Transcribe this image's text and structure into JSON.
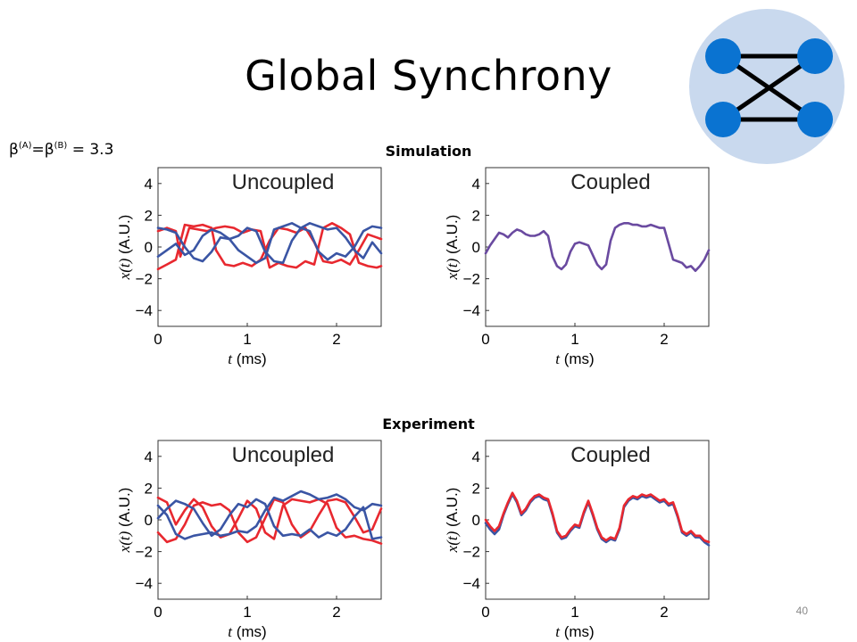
{
  "slide": {
    "title": "Global Synchrony",
    "beta_base": "β",
    "beta_sup_a": "(A)",
    "beta_sup_b": "(B)",
    "beta_eq": "=",
    "beta_value": " = 3.3",
    "simulation_label": "Simulation",
    "experiment_label": "Experiment",
    "page_number": "40"
  },
  "colors": {
    "red": "#e8282f",
    "blue": "#3a55a4",
    "purple": "#6a4aa0",
    "node": "#0a73d1",
    "circle_bg": "#c9d9ee"
  },
  "chart_data": [
    {
      "type": "line",
      "panel": "Uncoupled",
      "section": "Simulation",
      "xlabel_var": "t",
      "xlabel_unit": " (ms)",
      "ylabel_var": "x(t)",
      "ylabel_unit": " (A.U.)",
      "xlim": [
        0,
        2.5
      ],
      "ylim": [
        -5,
        5
      ],
      "xticks": [
        0,
        1,
        2
      ],
      "yticks": [
        4,
        2,
        0,
        -2,
        -4
      ],
      "series": [
        {
          "color": "red",
          "x": [
            0,
            0.1,
            0.2,
            0.25,
            0.35,
            0.45,
            0.55,
            0.65,
            0.75,
            0.85,
            0.95,
            1.05,
            1.15,
            1.25,
            1.35,
            1.45,
            1.55,
            1.65,
            1.75,
            1.85,
            1.95,
            2.05,
            2.15,
            2.25,
            2.35,
            2.45,
            2.5
          ],
          "y": [
            1.0,
            1.2,
            1.0,
            -0.6,
            1.2,
            1.1,
            1.0,
            1.2,
            1.3,
            1.2,
            0.9,
            1.1,
            1.0,
            -1.3,
            -1.0,
            -1.2,
            -1.3,
            -0.9,
            -1.1,
            1.2,
            1.5,
            1.2,
            0.8,
            -1.0,
            -1.2,
            -1.3,
            -1.2
          ]
        },
        {
          "color": "red",
          "x": [
            0,
            0.1,
            0.2,
            0.3,
            0.4,
            0.5,
            0.6,
            0.65,
            0.75,
            0.85,
            0.95,
            1.05,
            1.15,
            1.25,
            1.35,
            1.45,
            1.55,
            1.65,
            1.75,
            1.85,
            1.95,
            2.05,
            2.15,
            2.25,
            2.35,
            2.45,
            2.5
          ],
          "y": [
            -1.4,
            -1.1,
            -0.8,
            1.4,
            1.3,
            1.4,
            1.2,
            -0.2,
            -1.1,
            -1.2,
            -1.0,
            -1.2,
            -0.8,
            0.4,
            1.2,
            1.1,
            0.9,
            1.2,
            0.3,
            -0.9,
            -1.0,
            -0.8,
            -1.1,
            -0.2,
            0.8,
            0.6,
            0.5
          ]
        },
        {
          "color": "blue",
          "x": [
            0,
            0.1,
            0.2,
            0.3,
            0.4,
            0.5,
            0.6,
            0.7,
            0.8,
            0.9,
            1.0,
            1.1,
            1.2,
            1.3,
            1.4,
            1.5,
            1.6,
            1.7,
            1.8,
            1.9,
            2.0,
            2.1,
            2.2,
            2.3,
            2.4,
            2.5
          ],
          "y": [
            1.2,
            1.1,
            0.9,
            0.0,
            -0.7,
            -0.9,
            -0.3,
            0.6,
            0.5,
            0.7,
            1.2,
            1.0,
            -0.3,
            -0.9,
            -1.0,
            0.4,
            1.2,
            1.5,
            1.3,
            1.1,
            1.2,
            0.6,
            -0.2,
            -0.7,
            0.3,
            -0.4
          ]
        },
        {
          "color": "blue",
          "x": [
            0,
            0.1,
            0.2,
            0.3,
            0.4,
            0.5,
            0.6,
            0.7,
            0.8,
            0.9,
            1.0,
            1.1,
            1.2,
            1.3,
            1.4,
            1.5,
            1.6,
            1.7,
            1.8,
            1.9,
            2.0,
            2.1,
            2.2,
            2.3,
            2.4,
            2.5
          ],
          "y": [
            -0.6,
            -0.2,
            0.2,
            -0.5,
            -0.2,
            0.7,
            1.1,
            0.9,
            0.5,
            -0.2,
            -0.6,
            -1.0,
            -0.7,
            1.1,
            1.3,
            1.5,
            1.2,
            1.0,
            -0.3,
            -0.8,
            -0.4,
            -0.6,
            0.0,
            1.0,
            1.3,
            1.2
          ]
        }
      ]
    },
    {
      "type": "line",
      "panel": "Coupled",
      "section": "Simulation",
      "xlabel_var": "t",
      "xlabel_unit": " (ms)",
      "ylabel_var": "x(t)",
      "ylabel_unit": " (A.U.)",
      "xlim": [
        0,
        2.5
      ],
      "ylim": [
        -5,
        5
      ],
      "xticks": [
        0,
        1,
        2
      ],
      "yticks": [
        4,
        2,
        0,
        -2,
        -4
      ],
      "series": [
        {
          "color": "purple",
          "x": [
            0,
            0.05,
            0.1,
            0.15,
            0.2,
            0.25,
            0.3,
            0.35,
            0.4,
            0.45,
            0.5,
            0.55,
            0.6,
            0.65,
            0.7,
            0.75,
            0.8,
            0.85,
            0.9,
            0.95,
            1.0,
            1.05,
            1.1,
            1.15,
            1.2,
            1.25,
            1.3,
            1.35,
            1.4,
            1.45,
            1.5,
            1.55,
            1.6,
            1.65,
            1.7,
            1.75,
            1.8,
            1.85,
            1.9,
            1.95,
            2.0,
            2.05,
            2.1,
            2.15,
            2.2,
            2.25,
            2.3,
            2.35,
            2.4,
            2.45,
            2.5
          ],
          "y": [
            -0.4,
            0.1,
            0.5,
            0.9,
            0.8,
            0.6,
            0.9,
            1.1,
            1.0,
            0.8,
            0.7,
            0.7,
            0.8,
            1.0,
            0.7,
            -0.6,
            -1.2,
            -1.4,
            -1.1,
            -0.3,
            0.2,
            0.3,
            0.2,
            0.1,
            -0.5,
            -1.1,
            -1.4,
            -1.1,
            0.4,
            1.2,
            1.4,
            1.5,
            1.5,
            1.4,
            1.4,
            1.3,
            1.3,
            1.4,
            1.3,
            1.2,
            1.2,
            0.2,
            -0.8,
            -0.9,
            -1.0,
            -1.3,
            -1.2,
            -1.5,
            -1.2,
            -0.8,
            -0.2
          ]
        }
      ]
    },
    {
      "type": "line",
      "panel": "Uncoupled",
      "section": "Experiment",
      "xlabel_var": "t",
      "xlabel_unit": " (ms)",
      "ylabel_var": "x(t)",
      "ylabel_unit": " (A.U.)",
      "xlim": [
        0,
        2.5
      ],
      "ylim": [
        -5,
        5
      ],
      "xticks": [
        0,
        1,
        2
      ],
      "yticks": [
        4,
        2,
        0,
        -2,
        -4
      ],
      "series": [
        {
          "color": "red",
          "x": [
            0,
            0.1,
            0.2,
            0.3,
            0.4,
            0.5,
            0.6,
            0.7,
            0.8,
            0.9,
            1.0,
            1.1,
            1.2,
            1.3,
            1.4,
            1.5,
            1.6,
            1.7,
            1.8,
            1.9,
            2.0,
            2.1,
            2.2,
            2.3,
            2.4,
            2.5
          ],
          "y": [
            1.4,
            1.1,
            -0.3,
            0.6,
            1.3,
            0.8,
            -0.4,
            -1.1,
            -0.9,
            0.1,
            1.2,
            0.7,
            -0.8,
            -1.2,
            0.9,
            1.3,
            1.2,
            1.1,
            1.3,
            1.0,
            -0.5,
            -1.1,
            -1.0,
            -1.2,
            -1.3,
            -1.5
          ]
        },
        {
          "color": "red",
          "x": [
            0,
            0.1,
            0.2,
            0.3,
            0.4,
            0.5,
            0.6,
            0.7,
            0.8,
            0.9,
            1.0,
            1.1,
            1.2,
            1.3,
            1.4,
            1.5,
            1.6,
            1.7,
            1.8,
            1.9,
            2.0,
            2.1,
            2.2,
            2.3,
            2.4,
            2.5
          ],
          "y": [
            -0.8,
            -1.4,
            -1.2,
            -0.3,
            0.9,
            1.1,
            0.9,
            1.0,
            0.6,
            -0.8,
            -1.4,
            -1.1,
            0.1,
            1.3,
            1.1,
            -0.3,
            -1.1,
            -0.7,
            0.3,
            1.2,
            1.3,
            1.1,
            0.2,
            -0.8,
            -0.6,
            0.7
          ]
        },
        {
          "color": "blue",
          "x": [
            0,
            0.1,
            0.2,
            0.3,
            0.4,
            0.5,
            0.6,
            0.7,
            0.8,
            0.9,
            1.0,
            1.1,
            1.2,
            1.3,
            1.4,
            1.5,
            1.6,
            1.7,
            1.8,
            1.9,
            2.0,
            2.1,
            2.2,
            2.3,
            2.4,
            2.5
          ],
          "y": [
            0.9,
            0.3,
            -0.9,
            -1.2,
            -1.0,
            -0.9,
            -0.8,
            -1.0,
            -0.9,
            -0.7,
            -0.8,
            -0.4,
            0.6,
            1.4,
            1.2,
            1.5,
            1.8,
            1.6,
            1.3,
            1.4,
            1.6,
            1.3,
            0.8,
            0.6,
            1.0,
            0.9
          ]
        },
        {
          "color": "blue",
          "x": [
            0,
            0.1,
            0.2,
            0.3,
            0.4,
            0.5,
            0.6,
            0.7,
            0.8,
            0.9,
            1.0,
            1.1,
            1.2,
            1.3,
            1.4,
            1.5,
            1.6,
            1.7,
            1.8,
            1.9,
            2.0,
            2.1,
            2.2,
            2.3,
            2.4,
            2.5
          ],
          "y": [
            0.1,
            0.7,
            1.2,
            1.0,
            0.7,
            -0.2,
            -1.0,
            -0.6,
            0.3,
            1.0,
            0.8,
            1.3,
            1.0,
            -0.4,
            -1.0,
            -0.9,
            -1.0,
            -0.6,
            -1.1,
            -0.8,
            -1.0,
            -0.6,
            0.2,
            0.8,
            -1.2,
            -1.1
          ]
        }
      ]
    },
    {
      "type": "line",
      "panel": "Coupled",
      "section": "Experiment",
      "xlabel_var": "t",
      "xlabel_unit": " (ms)",
      "ylabel_var": "x(t)",
      "ylabel_unit": " (A.U.)",
      "xlim": [
        0,
        2.5
      ],
      "ylim": [
        -5,
        5
      ],
      "xticks": [
        0,
        1,
        2
      ],
      "yticks": [
        4,
        2,
        0,
        -2,
        -4
      ],
      "series": [
        {
          "color": "blue",
          "x": [
            0,
            0.05,
            0.1,
            0.15,
            0.2,
            0.25,
            0.3,
            0.35,
            0.4,
            0.45,
            0.5,
            0.55,
            0.6,
            0.65,
            0.7,
            0.75,
            0.8,
            0.85,
            0.9,
            0.95,
            1.0,
            1.05,
            1.1,
            1.15,
            1.2,
            1.25,
            1.3,
            1.35,
            1.4,
            1.45,
            1.5,
            1.55,
            1.6,
            1.65,
            1.7,
            1.75,
            1.8,
            1.85,
            1.9,
            1.95,
            2.0,
            2.05,
            2.1,
            2.15,
            2.2,
            2.25,
            2.3,
            2.35,
            2.4,
            2.45,
            2.5
          ],
          "y": [
            -0.2,
            -0.6,
            -0.9,
            -0.6,
            0.3,
            1.0,
            1.6,
            1.1,
            0.3,
            0.6,
            1.1,
            1.4,
            1.5,
            1.3,
            1.2,
            0.3,
            -0.8,
            -1.2,
            -1.1,
            -0.7,
            -0.4,
            -0.5,
            0.4,
            1.1,
            0.3,
            -0.6,
            -1.2,
            -1.4,
            -1.2,
            -1.3,
            -0.6,
            0.8,
            1.2,
            1.4,
            1.3,
            1.5,
            1.4,
            1.5,
            1.3,
            1.1,
            1.2,
            0.9,
            1.0,
            0.2,
            -0.8,
            -1.0,
            -0.8,
            -1.1,
            -1.1,
            -1.4,
            -1.6
          ]
        },
        {
          "color": "red",
          "x": [
            0,
            0.05,
            0.1,
            0.15,
            0.2,
            0.25,
            0.3,
            0.35,
            0.4,
            0.45,
            0.5,
            0.55,
            0.6,
            0.65,
            0.7,
            0.75,
            0.8,
            0.85,
            0.9,
            0.95,
            1.0,
            1.05,
            1.1,
            1.15,
            1.2,
            1.25,
            1.3,
            1.35,
            1.4,
            1.45,
            1.5,
            1.55,
            1.6,
            1.65,
            1.7,
            1.75,
            1.8,
            1.85,
            1.9,
            1.95,
            2.0,
            2.05,
            2.1,
            2.15,
            2.2,
            2.25,
            2.3,
            2.35,
            2.4,
            2.45,
            2.5
          ],
          "y": [
            0.0,
            -0.4,
            -0.7,
            -0.4,
            0.4,
            1.1,
            1.7,
            1.2,
            0.4,
            0.7,
            1.2,
            1.5,
            1.6,
            1.4,
            1.3,
            0.4,
            -0.7,
            -1.1,
            -1.0,
            -0.6,
            -0.3,
            -0.4,
            0.5,
            1.2,
            0.4,
            -0.5,
            -1.1,
            -1.3,
            -1.1,
            -1.2,
            -0.5,
            0.9,
            1.3,
            1.5,
            1.4,
            1.6,
            1.5,
            1.6,
            1.4,
            1.2,
            1.3,
            1.0,
            1.1,
            0.3,
            -0.7,
            -0.9,
            -0.7,
            -1.0,
            -1.0,
            -1.3,
            -1.4
          ]
        }
      ]
    }
  ]
}
